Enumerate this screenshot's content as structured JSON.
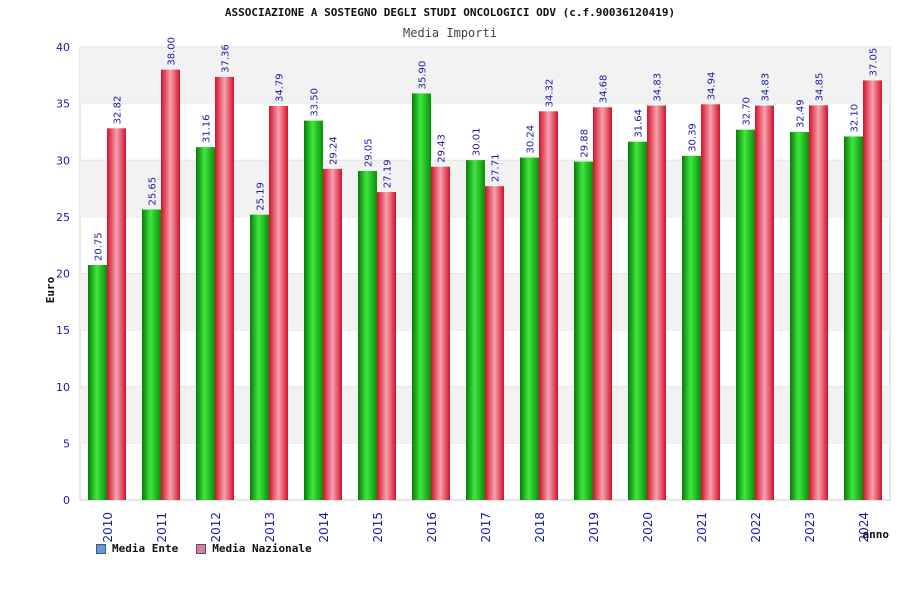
{
  "chart_data": {
    "type": "bar",
    "title": "ASSOCIAZIONE A SOSTEGNO DEGLI STUDI ONCOLOGICI ODV (c.f.90036120419)",
    "subtitle": "Media Importi",
    "xlabel": "anno",
    "ylabel": "Euro",
    "ylim": [
      0,
      40
    ],
    "yticks": [
      0,
      5,
      10,
      15,
      20,
      25,
      30,
      35,
      40
    ],
    "grid": "horizontal bands",
    "legend_position": "bottom-left",
    "categories": [
      "2010",
      "2011",
      "2012",
      "2013",
      "2014",
      "2015",
      "2016",
      "2017",
      "2018",
      "2019",
      "2020",
      "2021",
      "2022",
      "2023",
      "2024"
    ],
    "series": [
      {
        "name": "Media Ente",
        "bar_color": "#1fbf1f",
        "legend_color": "#5b9bf0",
        "values": [
          20.75,
          25.65,
          31.16,
          25.19,
          33.5,
          29.05,
          35.9,
          30.01,
          30.24,
          29.88,
          31.64,
          30.39,
          32.7,
          32.49,
          32.1
        ],
        "labels": [
          "20.75",
          "25.65",
          "31.16",
          "25.19",
          "33.50",
          "29.05",
          "35.90",
          "30.01",
          "30.24",
          "29.88",
          "31.64",
          "30.39",
          "32.70",
          "32.49",
          "32.10"
        ]
      },
      {
        "name": "Media Nazionale",
        "bar_color": "#e8283c",
        "legend_color": "#e07aa8",
        "values": [
          32.82,
          38.0,
          37.36,
          34.79,
          29.24,
          27.19,
          29.43,
          27.71,
          34.32,
          34.68,
          34.83,
          34.94,
          34.83,
          34.85,
          37.05
        ],
        "labels": [
          "32.82",
          "38.00",
          "37.36",
          "34.79",
          "29.24",
          "27.19",
          "29.43",
          "27.71",
          "34.32",
          "34.68",
          "34.83",
          "34.94",
          "34.83",
          "34.85",
          "37.05"
        ]
      }
    ]
  }
}
